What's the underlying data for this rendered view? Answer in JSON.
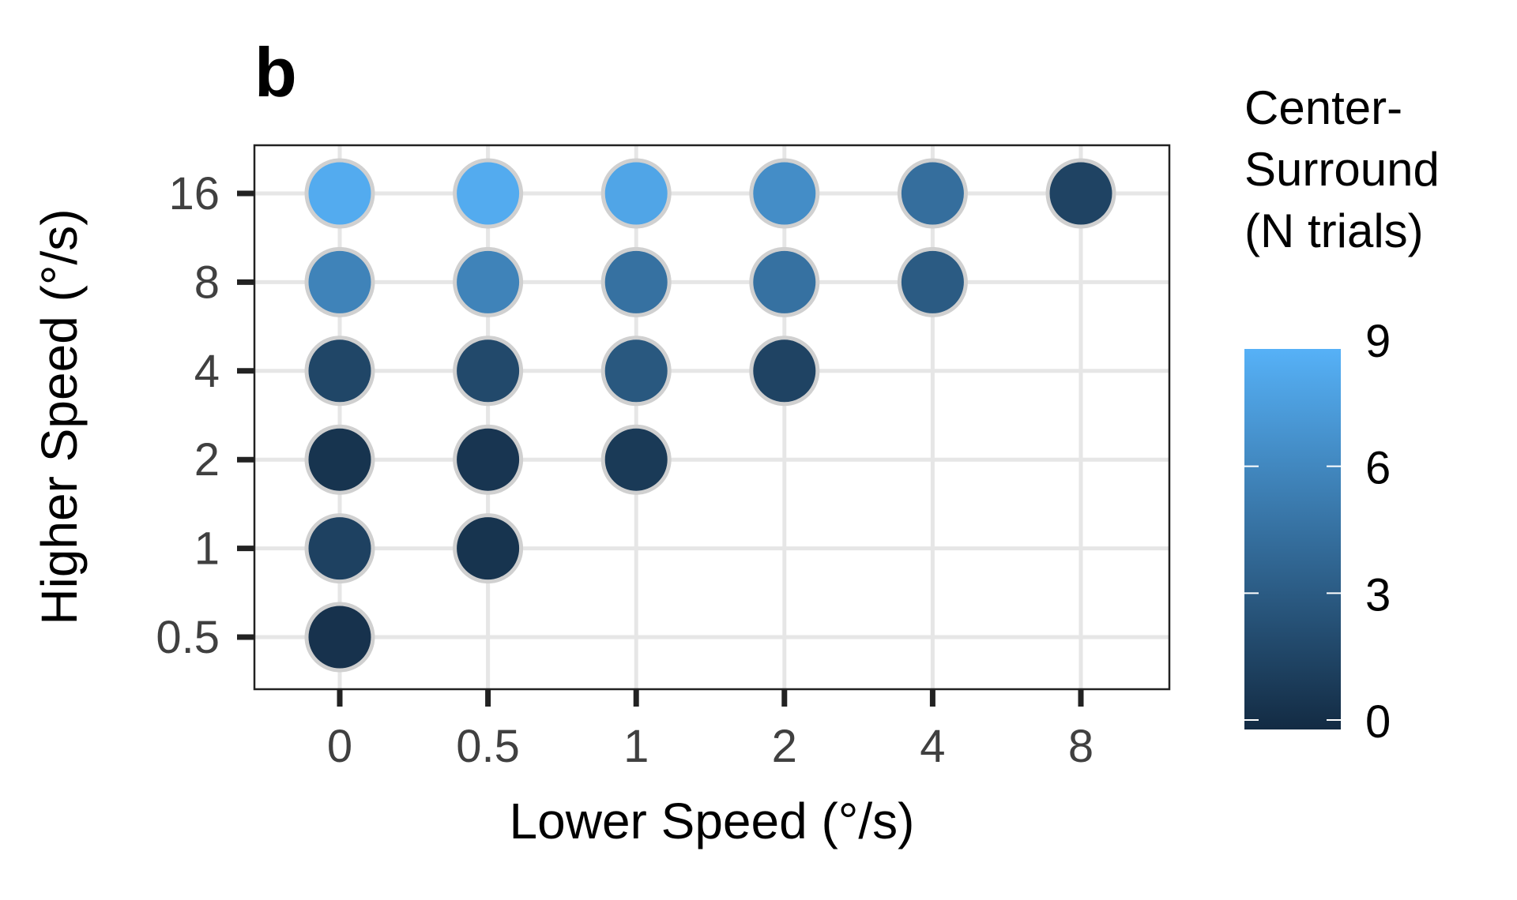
{
  "chart_data": {
    "type": "scatter",
    "panel_label": "b",
    "xlabel": "Lower Speed (°/s)",
    "ylabel": "Higher Speed (°/s)",
    "x_categories": [
      "0",
      "0.5",
      "1",
      "2",
      "4",
      "8"
    ],
    "y_categories": [
      "0.5",
      "1",
      "2",
      "4",
      "8",
      "16"
    ],
    "grid": true,
    "legend": {
      "title_lines": [
        "Center-",
        "Surround",
        "(N trials)"
      ],
      "ticks": [
        0,
        3,
        6,
        9
      ],
      "range": [
        0,
        9
      ],
      "placement": "right",
      "color_low": "#132B43",
      "color_high": "#56B1F7"
    },
    "points": [
      {
        "x": "0",
        "y": "16",
        "value": 8.6
      },
      {
        "x": "0.5",
        "y": "16",
        "value": 8.6
      },
      {
        "x": "1",
        "y": "16",
        "value": 8.2
      },
      {
        "x": "2",
        "y": "16",
        "value": 6.6
      },
      {
        "x": "4",
        "y": "16",
        "value": 4.5
      },
      {
        "x": "8",
        "y": "16",
        "value": 1.6
      },
      {
        "x": "0",
        "y": "8",
        "value": 5.9
      },
      {
        "x": "0.5",
        "y": "8",
        "value": 5.9
      },
      {
        "x": "1",
        "y": "8",
        "value": 4.7
      },
      {
        "x": "2",
        "y": "8",
        "value": 4.7
      },
      {
        "x": "4",
        "y": "8",
        "value": 3.2
      },
      {
        "x": "0",
        "y": "4",
        "value": 1.8
      },
      {
        "x": "0.5",
        "y": "4",
        "value": 2.0
      },
      {
        "x": "1",
        "y": "4",
        "value": 3.0
      },
      {
        "x": "2",
        "y": "4",
        "value": 1.6
      },
      {
        "x": "0",
        "y": "2",
        "value": 0.6
      },
      {
        "x": "0.5",
        "y": "2",
        "value": 0.7
      },
      {
        "x": "1",
        "y": "2",
        "value": 1.0
      },
      {
        "x": "0",
        "y": "1",
        "value": 1.5
      },
      {
        "x": "0.5",
        "y": "1",
        "value": 0.6
      },
      {
        "x": "0",
        "y": "0.5",
        "value": 0.5
      }
    ]
  }
}
